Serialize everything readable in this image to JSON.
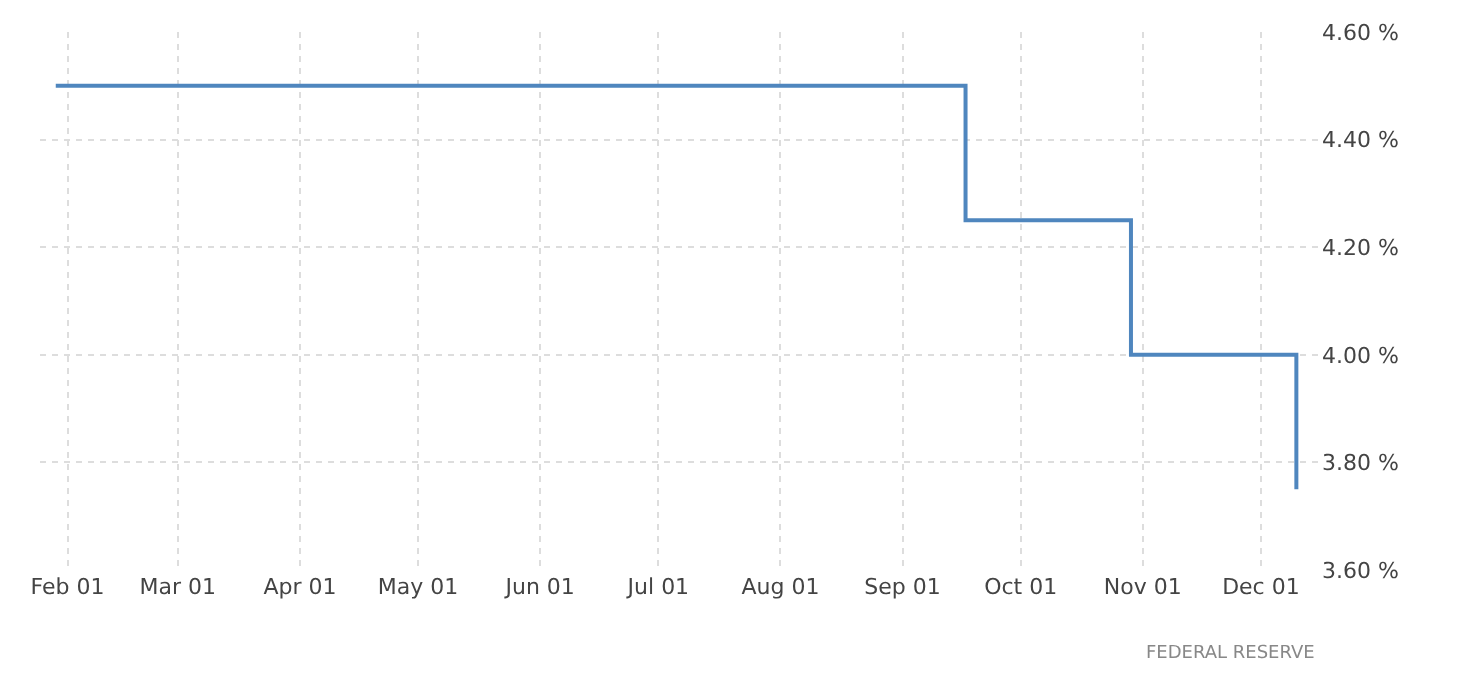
{
  "chart_data": {
    "type": "step",
    "x": [
      "--01-29",
      "--09-17",
      "--10-29",
      "--12-10"
    ],
    "series": [
      {
        "color": "#4f86be",
        "values": [
          4.5,
          4.25,
          4.0,
          3.75
        ]
      }
    ],
    "xlim": [
      "--01-25",
      "--12-16"
    ],
    "xticks": [
      {
        "value": "--02-01",
        "label": "Feb 01"
      },
      {
        "value": "--03-01",
        "label": "Mar 01"
      },
      {
        "value": "--04-01",
        "label": "Apr 01"
      },
      {
        "value": "--05-01",
        "label": "May 01"
      },
      {
        "value": "--06-01",
        "label": "Jun 01"
      },
      {
        "value": "--07-01",
        "label": "Jul 01"
      },
      {
        "value": "--08-01",
        "label": "Aug 01"
      },
      {
        "value": "--09-01",
        "label": "Sep 01"
      },
      {
        "value": "--10-01",
        "label": "Oct 01"
      },
      {
        "value": "--11-01",
        "label": "Nov 01"
      },
      {
        "value": "--12-01",
        "label": "Dec 01"
      }
    ],
    "ylim": [
      3.6,
      4.6
    ],
    "yticks": [
      {
        "value": 3.6,
        "label": "3.60 %"
      },
      {
        "value": 3.8,
        "label": "3.80 %"
      },
      {
        "value": 4.0,
        "label": "4.00 %"
      },
      {
        "value": 4.2,
        "label": "4.20 %"
      },
      {
        "value": 4.4,
        "label": "4.40 %"
      },
      {
        "value": 4.6,
        "label": "4.60 %"
      }
    ],
    "grid": true,
    "annotations": [
      "FEDERAL RESERVE"
    ]
  }
}
